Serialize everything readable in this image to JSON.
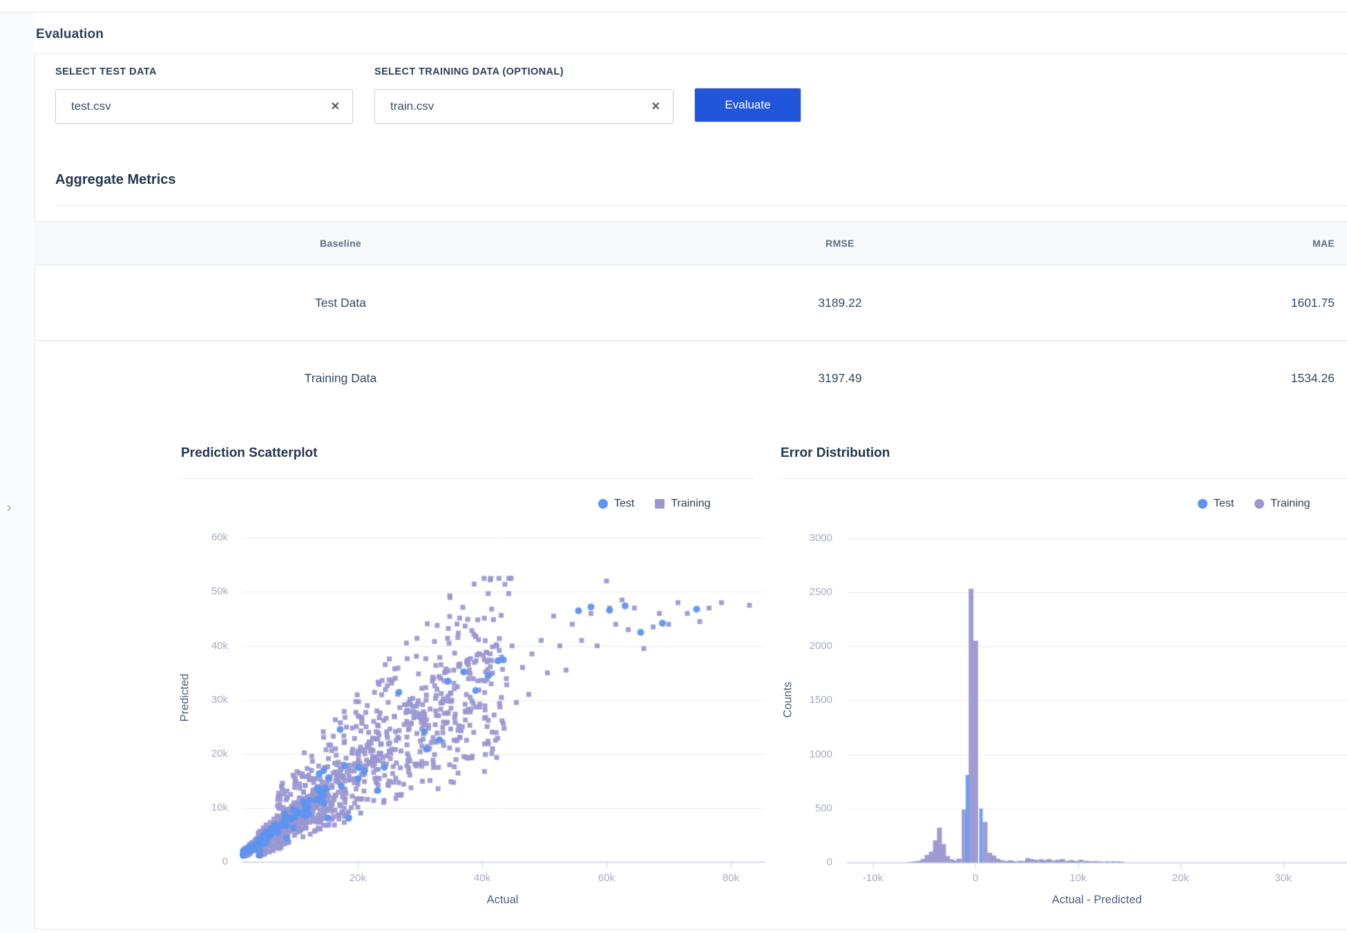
{
  "page": {
    "title": "Evaluation",
    "collapse_chevron": "›"
  },
  "form": {
    "test_field": {
      "label": "SELECT TEST DATA",
      "value": "test.csv",
      "clear_icon": "✕"
    },
    "training_field": {
      "label": "SELECT TRAINING DATA (OPTIONAL)",
      "value": "train.csv",
      "clear_icon": "✕"
    },
    "evaluate_button": "Evaluate"
  },
  "metrics": {
    "heading": "Aggregate Metrics",
    "columns": [
      "Baseline",
      "RMSE",
      "MAE"
    ],
    "rows": [
      {
        "baseline": "Test Data",
        "rmse": "3189.22",
        "mae": "1601.75"
      },
      {
        "baseline": "Training Data",
        "rmse": "3197.49",
        "mae": "1534.26"
      }
    ]
  },
  "colors": {
    "test_blue": "#5E93EF",
    "training_purple": "#9A97D1",
    "accent_button": "#2156DB",
    "grid": "#E9EBF2",
    "axis_line": "#D8DCE8",
    "tick_text": "#A7ACBF"
  },
  "chart_data": [
    {
      "type": "scatter",
      "title": "Prediction Scatterplot",
      "xlabel": "Actual",
      "ylabel": "Predicted",
      "xlim": [
        0,
        85000
      ],
      "ylim": [
        0,
        62500
      ],
      "grid": true,
      "legend_position": "top-right",
      "x_ticks": [
        {
          "label": "20k",
          "value": 20000
        },
        {
          "label": "40k",
          "value": 40000
        },
        {
          "label": "60k",
          "value": 60000
        },
        {
          "label": "80k",
          "value": 80000
        }
      ],
      "y_ticks": [
        {
          "label": "0",
          "value": 0
        },
        {
          "label": "10k",
          "value": 10000
        },
        {
          "label": "20k",
          "value": 20000
        },
        {
          "label": "30k",
          "value": 30000
        },
        {
          "label": "40k",
          "value": 40000
        },
        {
          "label": "50k",
          "value": 50000
        },
        {
          "label": "60k",
          "value": 60000
        }
      ],
      "legend": [
        {
          "label": "Test",
          "series": "test",
          "shape": "circle",
          "color": "#5E93EF"
        },
        {
          "label": "Training",
          "series": "training",
          "shape": "square",
          "color": "#9A97D1"
        }
      ],
      "series": {
        "training": {
          "marker": "square",
          "color": "#9A97D1",
          "cloud_n": 2400,
          "seed": 42,
          "cloud_range_k": {
            "x": [
              1.5,
              45
            ],
            "y": [
              1.5,
              52.5
            ]
          },
          "tail_points_k": [
            [
              45.5,
              29.5
            ],
            [
              46.5,
              36
            ],
            [
              47.5,
              31
            ],
            [
              48,
              38.5
            ],
            [
              49.5,
              41
            ],
            [
              50.5,
              35
            ],
            [
              51.5,
              45.5
            ],
            [
              52.5,
              40
            ],
            [
              53.5,
              35.5
            ],
            [
              54.5,
              44
            ],
            [
              56,
              41
            ],
            [
              57.5,
              46
            ],
            [
              58.5,
              40
            ],
            [
              60,
              52
            ],
            [
              60.5,
              47
            ],
            [
              61.5,
              44
            ],
            [
              62.5,
              48.5
            ],
            [
              63.5,
              43
            ],
            [
              64.5,
              47
            ],
            [
              66,
              39.5
            ],
            [
              67.5,
              43.5
            ],
            [
              68.5,
              46
            ],
            [
              70,
              44
            ],
            [
              71.5,
              48
            ],
            [
              73,
              46
            ],
            [
              75,
              44.5
            ],
            [
              76.5,
              47
            ],
            [
              78.5,
              48
            ],
            [
              83,
              47.5
            ]
          ]
        },
        "test": {
          "marker": "circle",
          "color": "#5E93EF",
          "cloud_n": 105,
          "seed": 1337,
          "cloud_range_k": {
            "x": [
              1.5,
              45
            ],
            "y": [
              1.5,
              52.5
            ]
          },
          "tail_points_k": [
            [
              55.5,
              46.5
            ],
            [
              57.5,
              47.2
            ],
            [
              60.5,
              46.6
            ],
            [
              63,
              47.4
            ],
            [
              65.5,
              42.5
            ],
            [
              69,
              44.2
            ],
            [
              74.5,
              46.8
            ]
          ]
        }
      }
    },
    {
      "type": "histogram",
      "title": "Error Distribution",
      "xlabel": "Actual - Predicted",
      "ylabel": "Counts",
      "xlim": [
        -14500,
        36000
      ],
      "ylim": [
        0,
        3150
      ],
      "grid": true,
      "legend_position": "top-right",
      "x_ticks": [
        {
          "label": "-10k",
          "value": -10000
        },
        {
          "label": "0",
          "value": 0
        },
        {
          "label": "10k",
          "value": 10000
        },
        {
          "label": "20k",
          "value": 20000
        },
        {
          "label": "30k",
          "value": 30000
        }
      ],
      "y_ticks": [
        {
          "label": "0",
          "value": 0
        },
        {
          "label": "500",
          "value": 500
        },
        {
          "label": "1000",
          "value": 1000
        },
        {
          "label": "1500",
          "value": 1500
        },
        {
          "label": "2000",
          "value": 2000
        },
        {
          "label": "2500",
          "value": 2500
        },
        {
          "label": "3000",
          "value": 3000
        }
      ],
      "legend": [
        {
          "label": "Test",
          "series": "test",
          "shape": "circle",
          "color": "#5E93EF"
        },
        {
          "label": "Training",
          "series": "training",
          "shape": "circle",
          "color": "#9A97D1"
        }
      ],
      "bars": [
        {
          "x": -6300,
          "count": 6,
          "series": "training"
        },
        {
          "x": -5900,
          "count": 10,
          "series": "training"
        },
        {
          "x": -5500,
          "count": 16,
          "series": "training"
        },
        {
          "x": -5100,
          "count": 34,
          "series": "training"
        },
        {
          "x": -4700,
          "count": 70,
          "series": "training"
        },
        {
          "x": -4300,
          "count": 100,
          "series": "training"
        },
        {
          "x": -3900,
          "count": 205,
          "series": "training"
        },
        {
          "x": -3500,
          "count": 322,
          "series": "training"
        },
        {
          "x": -3100,
          "count": 170,
          "series": "training"
        },
        {
          "x": -2700,
          "count": 60,
          "series": "training"
        },
        {
          "x": -2300,
          "count": 30,
          "series": "training"
        },
        {
          "x": -2150,
          "count": 10,
          "series": "test"
        },
        {
          "x": -1950,
          "count": 18,
          "series": "training"
        },
        {
          "x": -1600,
          "count": 36,
          "series": "training"
        },
        {
          "x": -1100,
          "count": 490,
          "series": "training"
        },
        {
          "x": -780,
          "count": 810,
          "series": "test"
        },
        {
          "x": -420,
          "count": 2530,
          "series": "training"
        },
        {
          "x": 30,
          "count": 2050,
          "series": "training"
        },
        {
          "x": 550,
          "count": 500,
          "series": "test"
        },
        {
          "x": 950,
          "count": 375,
          "series": "training"
        },
        {
          "x": 1400,
          "count": 90,
          "series": "training"
        },
        {
          "x": 1800,
          "count": 65,
          "series": "training"
        },
        {
          "x": 2200,
          "count": 35,
          "series": "training"
        },
        {
          "x": 2600,
          "count": 22,
          "series": "training"
        },
        {
          "x": 3000,
          "count": 14,
          "series": "training"
        },
        {
          "x": 3400,
          "count": 20,
          "series": "training"
        },
        {
          "x": 3600,
          "count": 8,
          "series": "test"
        },
        {
          "x": 3800,
          "count": 12,
          "series": "training"
        },
        {
          "x": 4300,
          "count": 16,
          "series": "training"
        },
        {
          "x": 4700,
          "count": 14,
          "series": "training"
        },
        {
          "x": 5100,
          "count": 42,
          "series": "training"
        },
        {
          "x": 5500,
          "count": 32,
          "series": "training"
        },
        {
          "x": 5900,
          "count": 26,
          "series": "training"
        },
        {
          "x": 6400,
          "count": 30,
          "series": "training"
        },
        {
          "x": 6600,
          "count": 10,
          "series": "test"
        },
        {
          "x": 6800,
          "count": 24,
          "series": "training"
        },
        {
          "x": 7200,
          "count": 32,
          "series": "training"
        },
        {
          "x": 7700,
          "count": 20,
          "series": "training"
        },
        {
          "x": 8100,
          "count": 26,
          "series": "training"
        },
        {
          "x": 8500,
          "count": 32,
          "series": "training"
        },
        {
          "x": 9000,
          "count": 16,
          "series": "training"
        },
        {
          "x": 9400,
          "count": 22,
          "series": "training"
        },
        {
          "x": 9600,
          "count": 8,
          "series": "test"
        },
        {
          "x": 9900,
          "count": 14,
          "series": "training"
        },
        {
          "x": 10300,
          "count": 26,
          "series": "training"
        },
        {
          "x": 10800,
          "count": 16,
          "series": "training"
        },
        {
          "x": 11200,
          "count": 12,
          "series": "training"
        },
        {
          "x": 11700,
          "count": 14,
          "series": "training"
        },
        {
          "x": 12200,
          "count": 10,
          "series": "training"
        },
        {
          "x": 12700,
          "count": 8,
          "series": "training"
        },
        {
          "x": 12900,
          "count": 10,
          "series": "test"
        },
        {
          "x": 13400,
          "count": 12,
          "series": "training"
        },
        {
          "x": 13900,
          "count": 10,
          "series": "training"
        },
        {
          "x": 14300,
          "count": 8,
          "series": "training"
        }
      ]
    }
  ]
}
